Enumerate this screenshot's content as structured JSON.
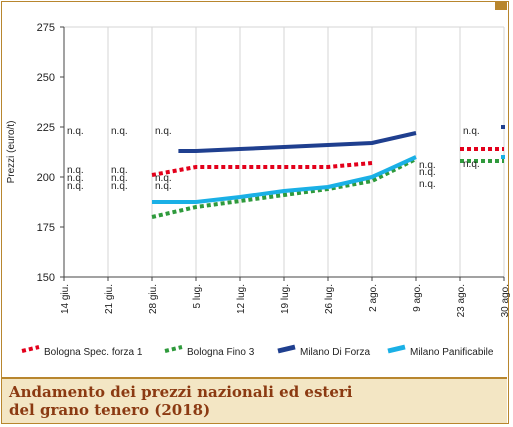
{
  "chart_data": {
    "type": "line",
    "ylabel": "Prezzi (euro/t)",
    "ylim": [
      150,
      275
    ],
    "yticks": [
      150,
      175,
      200,
      225,
      250,
      275
    ],
    "categories": [
      "14 giu.",
      "21 giu.",
      "28 giu.",
      "5 lug.",
      "12 lug.",
      "19 lug.",
      "26 lug.",
      "2 ago.",
      "9 ago.",
      "23 ago.",
      "30 ago."
    ],
    "grid": "vertical",
    "legend_position": "bottom",
    "series": [
      {
        "name": "Bologna Spec. forza 1",
        "color": "#e3001b",
        "style": "dotted",
        "segments": [
          [
            [
              2,
              201
            ],
            [
              3,
              205
            ],
            [
              4,
              205
            ],
            [
              5,
              205
            ],
            [
              6,
              205
            ],
            [
              7,
              207
            ]
          ],
          [
            [
              9,
              214
            ],
            [
              10,
              214
            ]
          ]
        ]
      },
      {
        "name": "Bologna Fino 3",
        "color": "#2f9a3c",
        "style": "dotted",
        "segments": [
          [
            [
              2,
              180
            ],
            [
              3,
              185
            ],
            [
              4,
              188
            ],
            [
              5,
              191
            ],
            [
              6,
              194
            ],
            [
              7,
              198
            ],
            [
              8,
              209
            ]
          ],
          [
            [
              9,
              208
            ],
            [
              10,
              208
            ]
          ]
        ]
      },
      {
        "name": "Milano Di Forza",
        "color": "#1f3f8f",
        "style": "solid",
        "segments": [
          [
            [
              2.6,
              213
            ],
            [
              3,
              213
            ],
            [
              4,
              214
            ],
            [
              5,
              215
            ],
            [
              6,
              216
            ],
            [
              7,
              217
            ],
            [
              8,
              222
            ]
          ],
          [
            [
              10,
              225
            ]
          ]
        ]
      },
      {
        "name": "Milano Panificabile",
        "color": "#1ab0e6",
        "style": "solid",
        "segments": [
          [
            [
              2,
              187.5
            ],
            [
              3,
              187.5
            ],
            [
              4,
              190
            ],
            [
              5,
              193
            ],
            [
              6,
              195
            ],
            [
              7,
              200
            ],
            [
              8,
              210
            ]
          ],
          [
            [
              10,
              210
            ]
          ]
        ]
      }
    ],
    "annotations": [
      {
        "text": "n.q.",
        "x": 0,
        "y": 223.5
      },
      {
        "text": "n.q.",
        "x": 1,
        "y": 223.5
      },
      {
        "text": "n.q.",
        "x": 2,
        "y": 223.5
      },
      {
        "text": "n.q.",
        "x": 0,
        "y": 204
      },
      {
        "text": "n.q.",
        "x": 1,
        "y": 204
      },
      {
        "text": "n.q.",
        "x": 0,
        "y": 200
      },
      {
        "text": "n.q.",
        "x": 1,
        "y": 200
      },
      {
        "text": "n.q.",
        "x": 2,
        "y": 200
      },
      {
        "text": "n.q.",
        "x": 0,
        "y": 196
      },
      {
        "text": "n.q.",
        "x": 1,
        "y": 196
      },
      {
        "text": "n.q.",
        "x": 2,
        "y": 196
      },
      {
        "text": "n.q.",
        "x": 9,
        "y": 223.5
      },
      {
        "text": "n.q.",
        "x": 9,
        "y": 207
      },
      {
        "text": "n.q.",
        "x": 8,
        "y": 206.5
      },
      {
        "text": "n.q.",
        "x": 8,
        "y": 203
      },
      {
        "text": "n.q.",
        "x": 8,
        "y": 197
      }
    ]
  },
  "caption": {
    "line1": "Andamento dei prezzi nazionali ed esteri",
    "line2": "del grano tenero (2018)"
  }
}
